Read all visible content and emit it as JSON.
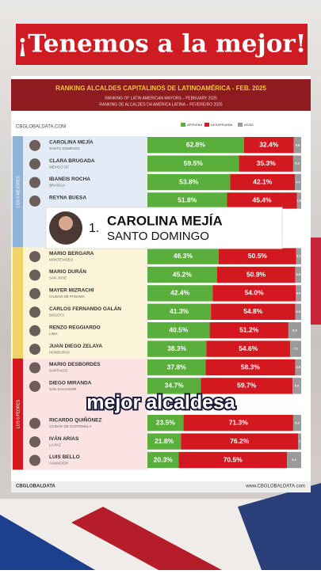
{
  "header": "¡Tenemos a la mejor!",
  "chart_data": {
    "type": "bar",
    "orientation": "horizontal",
    "stacked": true,
    "title": "RANKING ALCALDES CAPITALINOS DE LATINOAMÉRICA - FEB. 2025",
    "subtitles": [
      "RANKING OF LATIN AMERICAN MAYORS – FEBRUARY 2025",
      "RANKING DE ALCALDES DA AMÉRICA LATINA – FEVEREIRO 2025"
    ],
    "brand": "CBGLOBALDATA.COM",
    "categories": [
      "CAROLINA MEJÍA",
      "CLARA BRUGADA",
      "IBANEIS ROCHA",
      "REYNA BUESA",
      null,
      null,
      "MARIO BERGARA",
      "MARIO DURÁN",
      "MAYER MIZRACHI",
      "CARLOS FERNANDO GALÁN",
      "RENZO REGGIARDO",
      "JUAN DIEGO ZELAYA",
      "MARIO DESBORDES",
      "DIEGO MIRANDA",
      null,
      "RICARDO QUIÑÓNEZ",
      "IVÁN ARIAS",
      "LUIS BELLO"
    ],
    "cities": [
      "SANTO DOMINGO",
      "MÉXICO DF",
      "BRASILIA",
      null,
      null,
      null,
      "MONTEVIDEO",
      "SAN JOSÉ",
      "CIUDAD DE PANAMÁ",
      "BOGOTÁ",
      "LIMA",
      "HONDURAS",
      "SANTIAGO",
      "SAN SALVADOR",
      null,
      "CIUDAD DE GUATEMALA",
      "LA PAZ",
      "ASUNCIÓN"
    ],
    "groups": [
      "LOS 6 MEJORES",
      "LOS 6 PEORES"
    ],
    "xlim": [
      0,
      100
    ],
    "series": [
      {
        "name": "APRUEBA",
        "color": "#5aae3c",
        "values": [
          62.8,
          59.5,
          53.8,
          51.8,
          null,
          null,
          46.3,
          45.2,
          42.4,
          41.3,
          40.5,
          38.3,
          37.8,
          34.7,
          null,
          23.5,
          21.8,
          20.3
        ],
        "value_labels": [
          "62.8%",
          "59.5%",
          "53.8%",
          "51.8%",
          null,
          null,
          "46.3%",
          "45.2%",
          "42.4%",
          "41.3%",
          "40.5%",
          "38.3%",
          "37.8%",
          "34.7%",
          null,
          "23.5%",
          "21.8%",
          "20.3%"
        ]
      },
      {
        "name": "DESAPRUEBA",
        "color": "#d3191f",
        "values": [
          32.4,
          35.3,
          42.1,
          45.4,
          null,
          null,
          50.5,
          50.9,
          54.0,
          54.8,
          51.2,
          54.6,
          58.3,
          59.7,
          null,
          71.3,
          76.2,
          70.5
        ],
        "value_labels": [
          "32.4%",
          "35.3%",
          "42.1%",
          "45.4%",
          null,
          null,
          "50.5%",
          "50.9%",
          "54.0%",
          "54.8%",
          "51.2%",
          "54.6%",
          "58.3%",
          "59.7%",
          null,
          "71.3%",
          "76.2%",
          "70.5%"
        ]
      },
      {
        "name": "NS/NC",
        "color": "#9a9a9a",
        "values": [
          4.8,
          5.2,
          4.1,
          2.8,
          null,
          null,
          3.2,
          3.9,
          3.6,
          3.9,
          8.3,
          7.1,
          3.9,
          5.6,
          null,
          5.2,
          2.0,
          9.2
        ]
      }
    ]
  },
  "highlight": {
    "rank": "1.",
    "name": "CAROLINA MEJÍA",
    "city": "SANTO DOMINGO"
  },
  "caption": "mejor alcaldesa",
  "footer": {
    "brand": "CBGLOBALDATA",
    "url": "www.CBGLOBALDATA.com"
  }
}
